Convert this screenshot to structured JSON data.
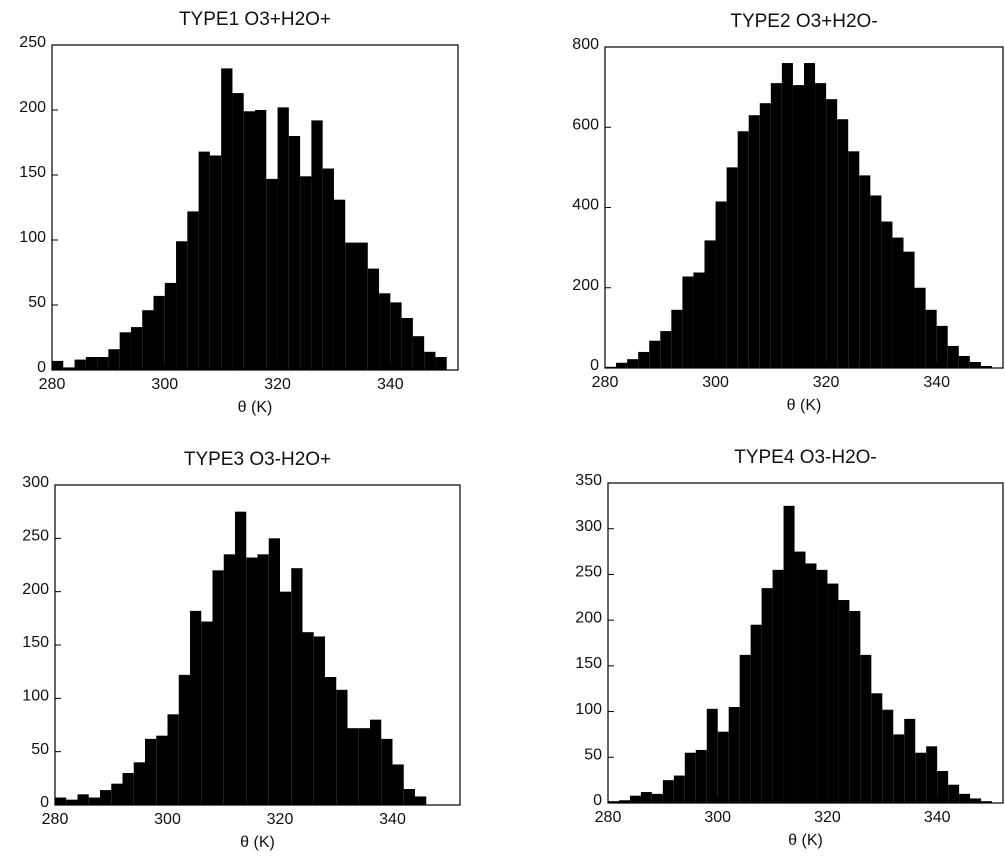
{
  "chart_data": [
    {
      "type": "histogram",
      "title": "TYPE1  O3+H2O+",
      "x_label": "θ (K)",
      "color": "#000000",
      "bins": [
        280,
        282,
        284,
        286,
        288,
        290,
        292,
        294,
        296,
        298,
        300,
        302,
        304,
        306,
        308,
        310,
        312,
        314,
        316,
        318,
        320,
        322,
        324,
        326,
        328,
        330,
        332,
        334,
        336,
        338,
        340,
        342,
        344,
        346,
        348,
        350
      ],
      "values": [
        7,
        2,
        8,
        10,
        10,
        16,
        29,
        33,
        46,
        57,
        67,
        99,
        122,
        168,
        165,
        232,
        213,
        199,
        200,
        147,
        202,
        180,
        149,
        192,
        155,
        131,
        98,
        98,
        78,
        59,
        52,
        40,
        26,
        14,
        10
      ],
      "xlim": [
        280,
        352
      ],
      "xticks": [
        280,
        300,
        320,
        340
      ],
      "ylim": [
        0,
        250
      ],
      "yticks": [
        0,
        50,
        100,
        150,
        200,
        250
      ]
    },
    {
      "type": "histogram",
      "title": "TYPE2  O3+H2O-",
      "x_label": "θ (K)",
      "color": "#000000",
      "bins": [
        280,
        282,
        284,
        286,
        288,
        290,
        292,
        294,
        296,
        298,
        300,
        302,
        304,
        306,
        308,
        310,
        312,
        314,
        316,
        318,
        320,
        322,
        324,
        326,
        328,
        330,
        332,
        334,
        336,
        338,
        340,
        342,
        344,
        346,
        348,
        350
      ],
      "values": [
        3,
        13,
        22,
        40,
        68,
        92,
        145,
        228,
        238,
        318,
        415,
        500,
        590,
        630,
        660,
        710,
        760,
        705,
        760,
        710,
        670,
        620,
        540,
        480,
        430,
        365,
        325,
        290,
        200,
        145,
        105,
        55,
        30,
        15,
        5
      ],
      "xlim": [
        280,
        352
      ],
      "xticks": [
        280,
        300,
        320,
        340
      ],
      "ylim": [
        0,
        800
      ],
      "yticks": [
        0,
        200,
        400,
        600,
        800
      ]
    },
    {
      "type": "histogram",
      "title": "TYPE3  O3-H2O+",
      "x_label": "θ (K)",
      "color": "#000000",
      "bins": [
        280,
        282,
        284,
        286,
        288,
        290,
        292,
        294,
        296,
        298,
        300,
        302,
        304,
        306,
        308,
        310,
        312,
        314,
        316,
        318,
        320,
        322,
        324,
        326,
        328,
        330,
        332,
        334,
        336,
        338,
        340,
        342,
        344,
        346,
        348,
        350
      ],
      "values": [
        7,
        5,
        10,
        7,
        14,
        20,
        30,
        40,
        62,
        65,
        85,
        122,
        182,
        172,
        220,
        235,
        275,
        232,
        235,
        250,
        200,
        222,
        162,
        158,
        120,
        108,
        72,
        72,
        80,
        62,
        38,
        15,
        8,
        0,
        0
      ],
      "xlim": [
        280,
        352
      ],
      "xticks": [
        280,
        300,
        320,
        340
      ],
      "ylim": [
        0,
        300
      ],
      "yticks": [
        0,
        50,
        100,
        150,
        200,
        250,
        300
      ]
    },
    {
      "type": "histogram",
      "title": "TYPE4  O3-H2O-",
      "x_label": "θ (K)",
      "color": "#000000",
      "bins": [
        280,
        282,
        284,
        286,
        288,
        290,
        292,
        294,
        296,
        298,
        300,
        302,
        304,
        306,
        308,
        310,
        312,
        314,
        316,
        318,
        320,
        322,
        324,
        326,
        328,
        330,
        332,
        334,
        336,
        338,
        340,
        342,
        344,
        346,
        348,
        350
      ],
      "values": [
        2,
        3,
        8,
        12,
        10,
        25,
        30,
        55,
        58,
        103,
        78,
        105,
        162,
        195,
        235,
        255,
        325,
        275,
        262,
        255,
        240,
        222,
        210,
        162,
        120,
        102,
        75,
        92,
        55,
        62,
        35,
        20,
        10,
        5,
        2
      ],
      "xlim": [
        280,
        352
      ],
      "xticks": [
        280,
        300,
        320,
        340
      ],
      "ylim": [
        0,
        350
      ],
      "yticks": [
        0,
        50,
        100,
        150,
        200,
        250,
        300,
        350
      ]
    }
  ]
}
